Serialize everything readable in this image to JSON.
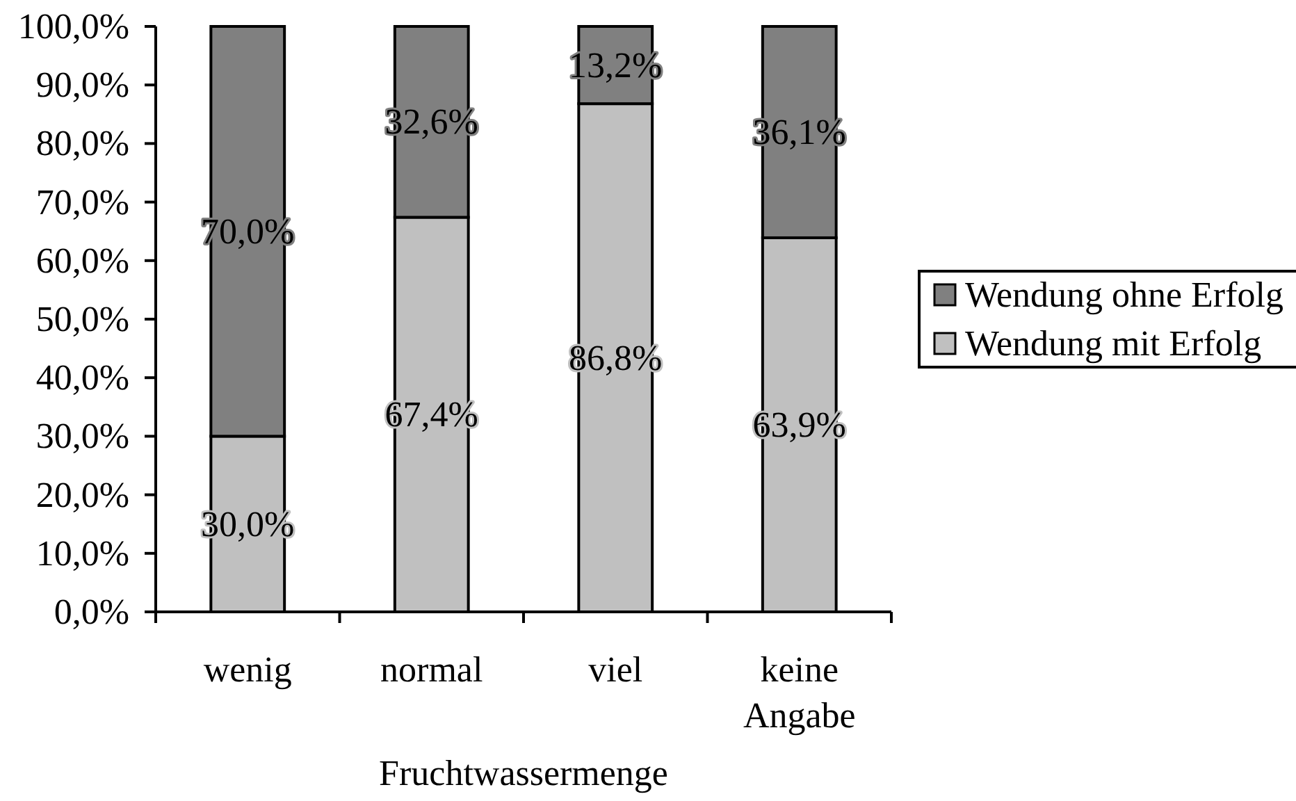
{
  "chart_data": {
    "type": "bar",
    "stacked": true,
    "categories": [
      "wenig",
      "normal",
      "viel",
      "keine Angabe"
    ],
    "xlabel": "Fruchtwassermenge",
    "series": [
      {
        "name": "Wendung mit Erfolg",
        "color": "#c0c0c0",
        "values": [
          30.0,
          67.4,
          86.8,
          63.9
        ],
        "value_labels": [
          "30,0%",
          "67,4%",
          "86,8%",
          "63,9%"
        ]
      },
      {
        "name": "Wendung ohne Erfolg",
        "color": "#808080",
        "values": [
          70.0,
          32.6,
          13.2,
          36.1
        ],
        "value_labels": [
          "70,0%",
          "32,6%",
          "13,2%",
          "36,1%"
        ]
      }
    ],
    "ylim": [
      0,
      100
    ],
    "yticks": [
      {
        "value": 0,
        "label": "0,0%"
      },
      {
        "value": 10,
        "label": "10,0%"
      },
      {
        "value": 20,
        "label": "20,0%"
      },
      {
        "value": 30,
        "label": "30,0%"
      },
      {
        "value": 40,
        "label": "40,0%"
      },
      {
        "value": 50,
        "label": "50,0%"
      },
      {
        "value": 60,
        "label": "60,0%"
      },
      {
        "value": 70,
        "label": "70,0%"
      },
      {
        "value": 80,
        "label": "80,0%"
      },
      {
        "value": 90,
        "label": "90,0%"
      },
      {
        "value": 100,
        "label": "100,0%"
      }
    ],
    "legend": "right"
  }
}
